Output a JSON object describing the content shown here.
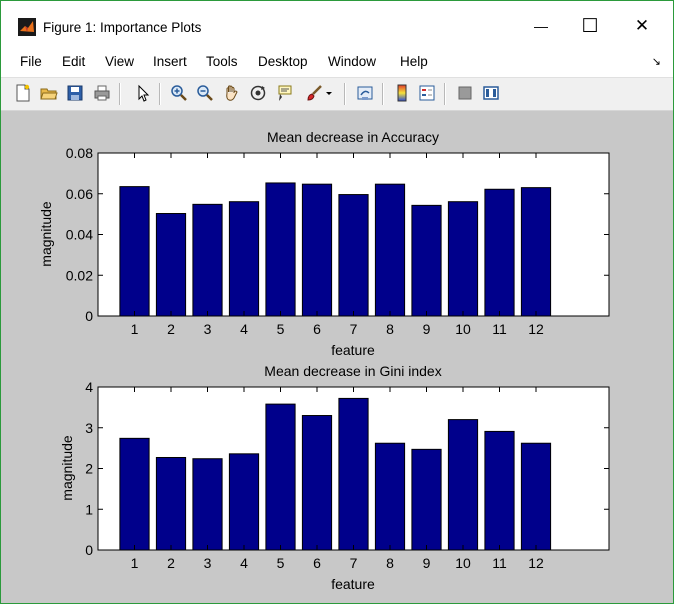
{
  "window": {
    "title": "Figure 1: Importance Plots",
    "minimize_glyph": "—",
    "maximize_glyph": "☐",
    "close_glyph": "✕"
  },
  "menu": {
    "items": [
      "File",
      "Edit",
      "View",
      "Insert",
      "Tools",
      "Desktop",
      "Window",
      "Help"
    ],
    "dock_arrow": "↘"
  },
  "toolbar": {
    "buttons": [
      "new-figure",
      "open-file",
      "save",
      "print",
      "edit-plot",
      "zoom-in",
      "zoom-out",
      "pan",
      "rotate-3d",
      "data-cursor",
      "brush",
      "brush-options",
      "link-plot",
      "insert-colorbar",
      "insert-legend",
      "hide-plot-tools",
      "show-plot-tools"
    ]
  },
  "colors": {
    "bar_fill": "#00008b",
    "bar_stroke": "#000000",
    "figure_bg": "#c8c8c8",
    "axes_bg": "#ffffff"
  },
  "chart_data": [
    {
      "type": "bar",
      "title": "Mean decrease in Accuracy",
      "xlabel": "feature",
      "ylabel": "magnitude",
      "categories": [
        "1",
        "2",
        "3",
        "4",
        "5",
        "6",
        "7",
        "8",
        "9",
        "10",
        "11",
        "12"
      ],
      "values": [
        0.0635,
        0.0503,
        0.0548,
        0.0561,
        0.0653,
        0.0647,
        0.0596,
        0.0647,
        0.0543,
        0.0561,
        0.0622,
        0.063
      ],
      "xlim": [
        0,
        14
      ],
      "ylim": [
        0,
        0.08
      ],
      "yticks": [
        0,
        0.02,
        0.04,
        0.06,
        0.08
      ],
      "ytick_labels": [
        "0",
        "0.02",
        "0.04",
        "0.06",
        "0.08"
      ]
    },
    {
      "type": "bar",
      "title": "Mean decrease in Gini index",
      "xlabel": "feature",
      "ylabel": "magnitude",
      "categories": [
        "1",
        "2",
        "3",
        "4",
        "5",
        "6",
        "7",
        "8",
        "9",
        "10",
        "11",
        "12"
      ],
      "values": [
        2.74,
        2.27,
        2.24,
        2.36,
        3.58,
        3.3,
        3.72,
        2.62,
        2.47,
        3.2,
        2.91,
        2.62
      ],
      "xlim": [
        0,
        14
      ],
      "ylim": [
        0,
        4
      ],
      "yticks": [
        0,
        1,
        2,
        3,
        4
      ],
      "ytick_labels": [
        "0",
        "1",
        "2",
        "3",
        "4"
      ]
    }
  ]
}
